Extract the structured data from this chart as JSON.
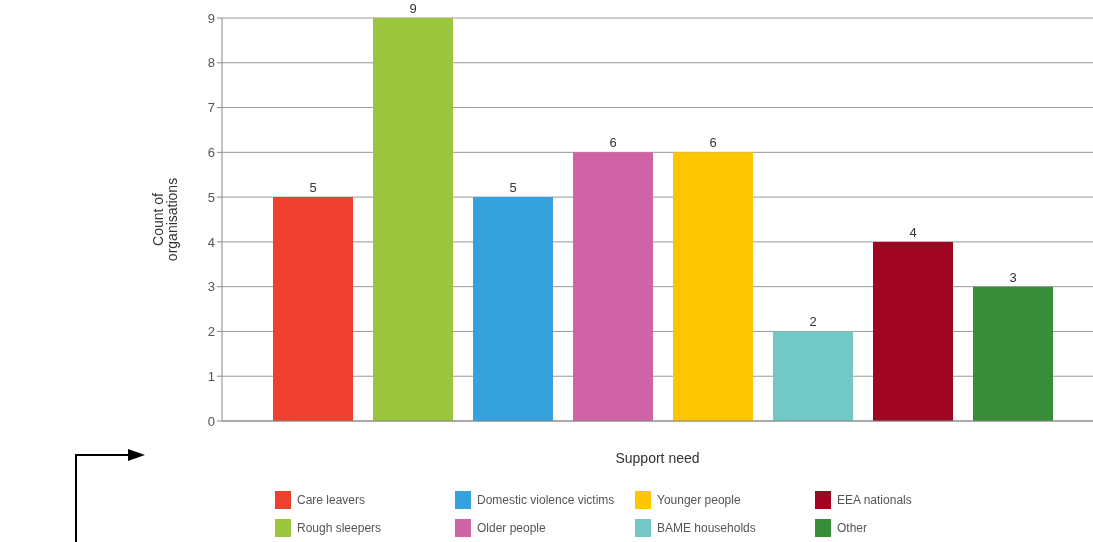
{
  "chart_data": {
    "type": "bar",
    "xlabel": "Support need",
    "ylabel": "Count of organisations",
    "categories": [
      null,
      null,
      null,
      null,
      null,
      null,
      null,
      null
    ],
    "stacked": true,
    "series": [
      {
        "name": "Care leavers",
        "color": "#ef3f2f",
        "values": [
          5,
          null,
          null,
          null,
          null,
          null,
          null,
          null
        ]
      },
      {
        "name": "Rough sleepers",
        "color": "#9ac53c",
        "values": [
          null,
          9,
          null,
          null,
          null,
          null,
          null,
          null
        ]
      },
      {
        "name": "Domestic violence victims",
        "color": "#35a2dd",
        "values": [
          null,
          null,
          5,
          null,
          null,
          null,
          null,
          null
        ]
      },
      {
        "name": "Older people",
        "color": "#cf63a6",
        "values": [
          null,
          null,
          null,
          6,
          null,
          null,
          null,
          null
        ]
      },
      {
        "name": "Younger people",
        "color": "#fec601",
        "values": [
          null,
          null,
          null,
          null,
          6,
          null,
          null,
          null
        ]
      },
      {
        "name": "BAME households",
        "color": "#71c8c5",
        "values": [
          null,
          null,
          null,
          null,
          null,
          2,
          null,
          null
        ]
      },
      {
        "name": "EEA nationals",
        "color": "#a00522",
        "values": [
          null,
          null,
          null,
          null,
          null,
          null,
          4,
          null
        ]
      },
      {
        "name": "Other",
        "color": "#378d3a",
        "values": [
          null,
          null,
          null,
          null,
          null,
          null,
          null,
          3
        ]
      }
    ],
    "ylim": [
      0,
      9
    ],
    "yticks": [
      0,
      1,
      2,
      3,
      4,
      5,
      6,
      7,
      8,
      9
    ],
    "grid": "y",
    "data_labels": true,
    "legend": "bottom",
    "tick_labels": "y"
  }
}
